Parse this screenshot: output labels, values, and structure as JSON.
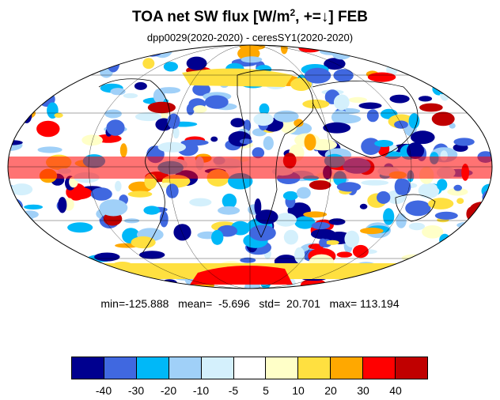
{
  "title": {
    "text_before": "TOA net SW flux [W/m",
    "superscript": "2",
    "text_after": ", +=↓]  FEB"
  },
  "subtitle": "dpp0029(2020-2020) - ceresSY1(2020-2020)",
  "stats": {
    "text": "min=-125.888   mean=  -5.696   std=  20.701   max= 113.194"
  },
  "colorbar": {
    "colors": [
      "#00008f",
      "#4068e0",
      "#00b8f8",
      "#a0d0f8",
      "#d4f0fc",
      "#ffffff",
      "#ffffc8",
      "#ffe040",
      "#ffa800",
      "#ff0000",
      "#c00000"
    ],
    "tick_labels": [
      "-40",
      "-30",
      "-20",
      "-10",
      "-5",
      "5",
      "10",
      "20",
      "30",
      "40"
    ]
  },
  "map": {
    "projection": "mollweide",
    "ocean_background": "#ffffff",
    "coastline_color": "#000000"
  }
}
